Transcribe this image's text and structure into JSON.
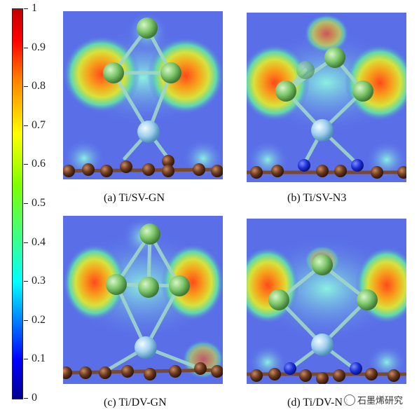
{
  "colorbar": {
    "ticks": [
      "1",
      "0.9",
      "0.8",
      "0.7",
      "0.6",
      "0.5",
      "0.4",
      "0.3",
      "0.2",
      "0.1",
      "0"
    ],
    "values": [
      1,
      0.9,
      0.8,
      0.7,
      0.6,
      0.5,
      0.4,
      0.3,
      0.2,
      0.1,
      0
    ]
  },
  "panels": {
    "a": {
      "caption": "(a) Ti/SV-GN"
    },
    "b": {
      "caption": "(b) Ti/SV-N3"
    },
    "c": {
      "caption": "(c) Ti/DV-GN"
    },
    "d": {
      "caption": "(d) Ti/DV-N3"
    }
  },
  "watermark": {
    "text": "石墨烯研究"
  },
  "colors": {
    "background_field": "#5a6ee8",
    "boron_atom": "#7cc76a",
    "titanium_atom": "#9fd0ee",
    "carbon_atom": "#6b3a1f",
    "nitrogen_atom": "#1a2fd6"
  }
}
